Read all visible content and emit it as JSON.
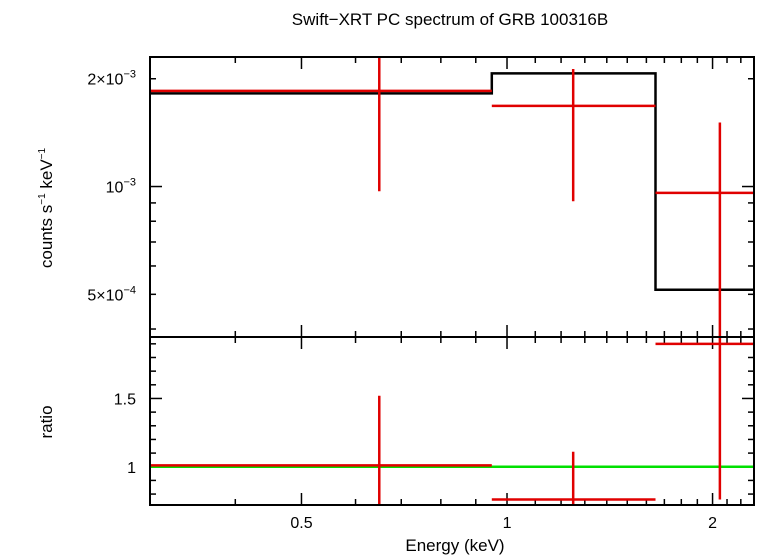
{
  "chart_data": [
    {
      "type": "line",
      "panel": "spectrum",
      "title": "Swift−XRT PC spectrum of GRB 100316B",
      "ylabel": {
        "base": "counts s",
        "sup1": "−1",
        "mid": " keV",
        "sup2": "−1"
      },
      "xlabel": "",
      "xscale": "log",
      "yscale": "log",
      "xlim": [
        0.3,
        2.3
      ],
      "ylim": [
        0.00038,
        0.0023
      ],
      "yticks": [
        {
          "value": 0.0005,
          "label": "5×10",
          "exp": "−4"
        },
        {
          "value": 0.001,
          "label": "10",
          "exp": "−3"
        },
        {
          "value": 0.002,
          "label": "2×10",
          "exp": "−3"
        }
      ],
      "grid": false,
      "series": [
        {
          "kind": "data",
          "color": "#e00000",
          "points": [
            {
              "x": 0.65,
              "xlo": 0.3,
              "xhi": 0.95,
              "y": 0.00185,
              "ylo": 0.00097,
              "yhi": 0.00235
            },
            {
              "x": 1.25,
              "xlo": 0.95,
              "xhi": 1.65,
              "y": 0.00168,
              "ylo": 0.00091,
              "yhi": 0.00213
            },
            {
              "x": 2.05,
              "xlo": 1.65,
              "xhi": 2.3,
              "y": 0.00096,
              "ylo": 1e-05,
              "yhi": 0.00151
            }
          ]
        },
        {
          "kind": "model",
          "color": "#000000",
          "steps": [
            {
              "xlo": 0.3,
              "xhi": 0.95,
              "y": 0.00182
            },
            {
              "xlo": 0.95,
              "xhi": 1.65,
              "y": 0.00207
            },
            {
              "xlo": 1.65,
              "xhi": 2.3,
              "y": 0.000515
            }
          ]
        }
      ]
    },
    {
      "type": "line",
      "panel": "ratio",
      "title": "",
      "xlabel": "Energy (keV)",
      "ylabel": "ratio",
      "xscale": "log",
      "xlim": [
        0.3,
        2.3
      ],
      "ylim": [
        0.72,
        1.95
      ],
      "xticks": [
        {
          "value": 0.5,
          "label": "0.5"
        },
        {
          "value": 1,
          "label": "1"
        },
        {
          "value": 2,
          "label": "2"
        }
      ],
      "yticks": [
        {
          "value": 1,
          "label": "1"
        },
        {
          "value": 1.5,
          "label": "1.5"
        }
      ],
      "grid": false,
      "reference_line": {
        "y": 1,
        "color": "#00e000"
      },
      "series": [
        {
          "kind": "data",
          "color": "#e00000",
          "points": [
            {
              "x": 0.65,
              "xlo": 0.3,
              "xhi": 0.95,
              "y": 1.01,
              "ylo": 0.72,
              "yhi": 1.52
            },
            {
              "x": 1.25,
              "xlo": 0.95,
              "xhi": 1.65,
              "y": 0.76,
              "ylo": 0.72,
              "yhi": 1.11
            },
            {
              "x": 2.05,
              "xlo": 1.65,
              "xhi": 2.3,
              "y": 1.9,
              "ylo": 0.76,
              "yhi": 1.95
            }
          ]
        }
      ]
    }
  ]
}
